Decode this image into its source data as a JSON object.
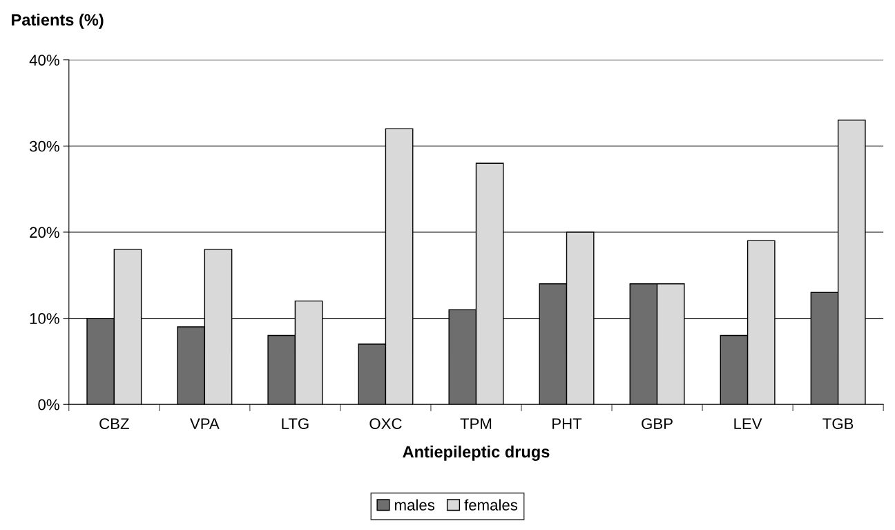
{
  "chart_data": {
    "type": "bar",
    "ylabel": "Patients (%)",
    "xlabel": "Antiepileptic drugs",
    "categories": [
      "CBZ",
      "VPA",
      "LTG",
      "OXC",
      "TPM",
      "PHT",
      "GBP",
      "LEV",
      "TGB"
    ],
    "series": [
      {
        "name": "males",
        "color": "#6e6e6e",
        "values": [
          10,
          9,
          8,
          7,
          11,
          14,
          14,
          8,
          13
        ]
      },
      {
        "name": "females",
        "color": "#d9d9d9",
        "values": [
          18,
          18,
          12,
          32,
          28,
          20,
          14,
          19,
          33
        ]
      }
    ],
    "ylim": [
      0,
      40
    ],
    "yticks": [
      {
        "value": 0,
        "label": "0%"
      },
      {
        "value": 10,
        "label": "10%"
      },
      {
        "value": 20,
        "label": "20%"
      },
      {
        "value": 30,
        "label": "30%"
      },
      {
        "value": 40,
        "label": "40%"
      }
    ],
    "grid": "y",
    "legend": "bottom"
  }
}
